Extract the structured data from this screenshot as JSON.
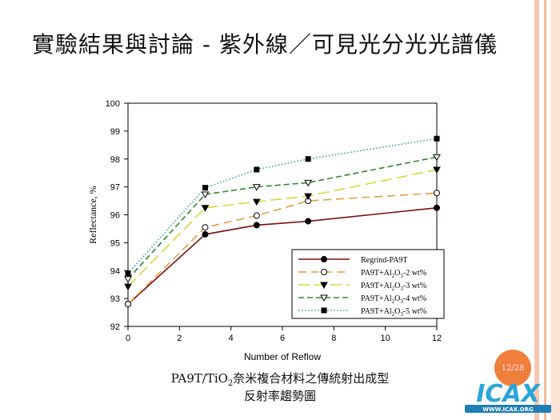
{
  "slide": {
    "title": "實驗結果與討論 - 紫外線／可見光分光光譜儀",
    "caption_line1_a": "PA9T/TiO",
    "caption_line1_sub": "2",
    "caption_line1_b": "奈米複合材料之傳統射出成型",
    "caption_line2": "反射率趨勢圖",
    "page_badge": "12/28",
    "logo_text": "ICAX",
    "logo_url_text": "WWW.ICAX.ORG"
  },
  "colors": {
    "accent": "#f07f3c",
    "stripe": "#f6c6ae"
  },
  "chart_data": {
    "type": "line",
    "xlabel": "Number of Reflow",
    "ylabel": "Reflectance, %",
    "xlim": [
      0,
      12
    ],
    "ylim": [
      92,
      100
    ],
    "xticks": [
      0,
      2,
      4,
      6,
      8,
      10,
      12
    ],
    "yticks": [
      92,
      93,
      94,
      95,
      96,
      97,
      98,
      99,
      100
    ],
    "x": [
      0,
      3,
      5,
      7,
      12
    ],
    "legend_position": "bottom-right",
    "series": [
      {
        "name": "Regrind-PA9T",
        "color": "#7a0f0f",
        "dash": "",
        "marker": "circle-filled",
        "values": [
          92.8,
          95.3,
          95.63,
          95.77,
          96.25
        ]
      },
      {
        "name": "PA9T+Al2O3-2 wt%",
        "label_a": "PA9T+Al",
        "sub1": "2",
        "label_b": "O",
        "sub2": "3",
        "label_c": "-2 wt%",
        "color": "#e0a040",
        "dash": "10,6",
        "marker": "circle-open",
        "values": [
          92.8,
          95.55,
          95.97,
          96.5,
          96.78
        ]
      },
      {
        "name": "PA9T+Al2O3-3 wt%",
        "label_a": "PA9T+Al",
        "sub1": "2",
        "label_b": "O",
        "sub2": "3",
        "label_c": "-3 wt%",
        "color": "#d8d840",
        "dash": "14,6",
        "marker": "triangle-down-filled",
        "values": [
          93.43,
          96.25,
          96.47,
          96.67,
          97.62
        ]
      },
      {
        "name": "PA9T+Al2O3-4 wt%",
        "label_a": "PA9T+Al",
        "sub1": "2",
        "label_b": "O",
        "sub2": "3",
        "label_c": "-4 wt%",
        "color": "#2a8a2a",
        "dash": "7,4",
        "marker": "triangle-down-open",
        "values": [
          93.7,
          96.73,
          97.0,
          97.15,
          98.07
        ]
      },
      {
        "name": "PA9T+Al2O3-5 wt%",
        "label_a": "PA9T+Al",
        "sub1": "2",
        "label_b": "O",
        "sub2": "3",
        "label_c": "-5 wt%",
        "color": "#3aa0a0",
        "dash": "1.5,2.5",
        "marker": "square-filled",
        "values": [
          93.9,
          96.97,
          97.62,
          98.0,
          98.73
        ]
      }
    ]
  }
}
